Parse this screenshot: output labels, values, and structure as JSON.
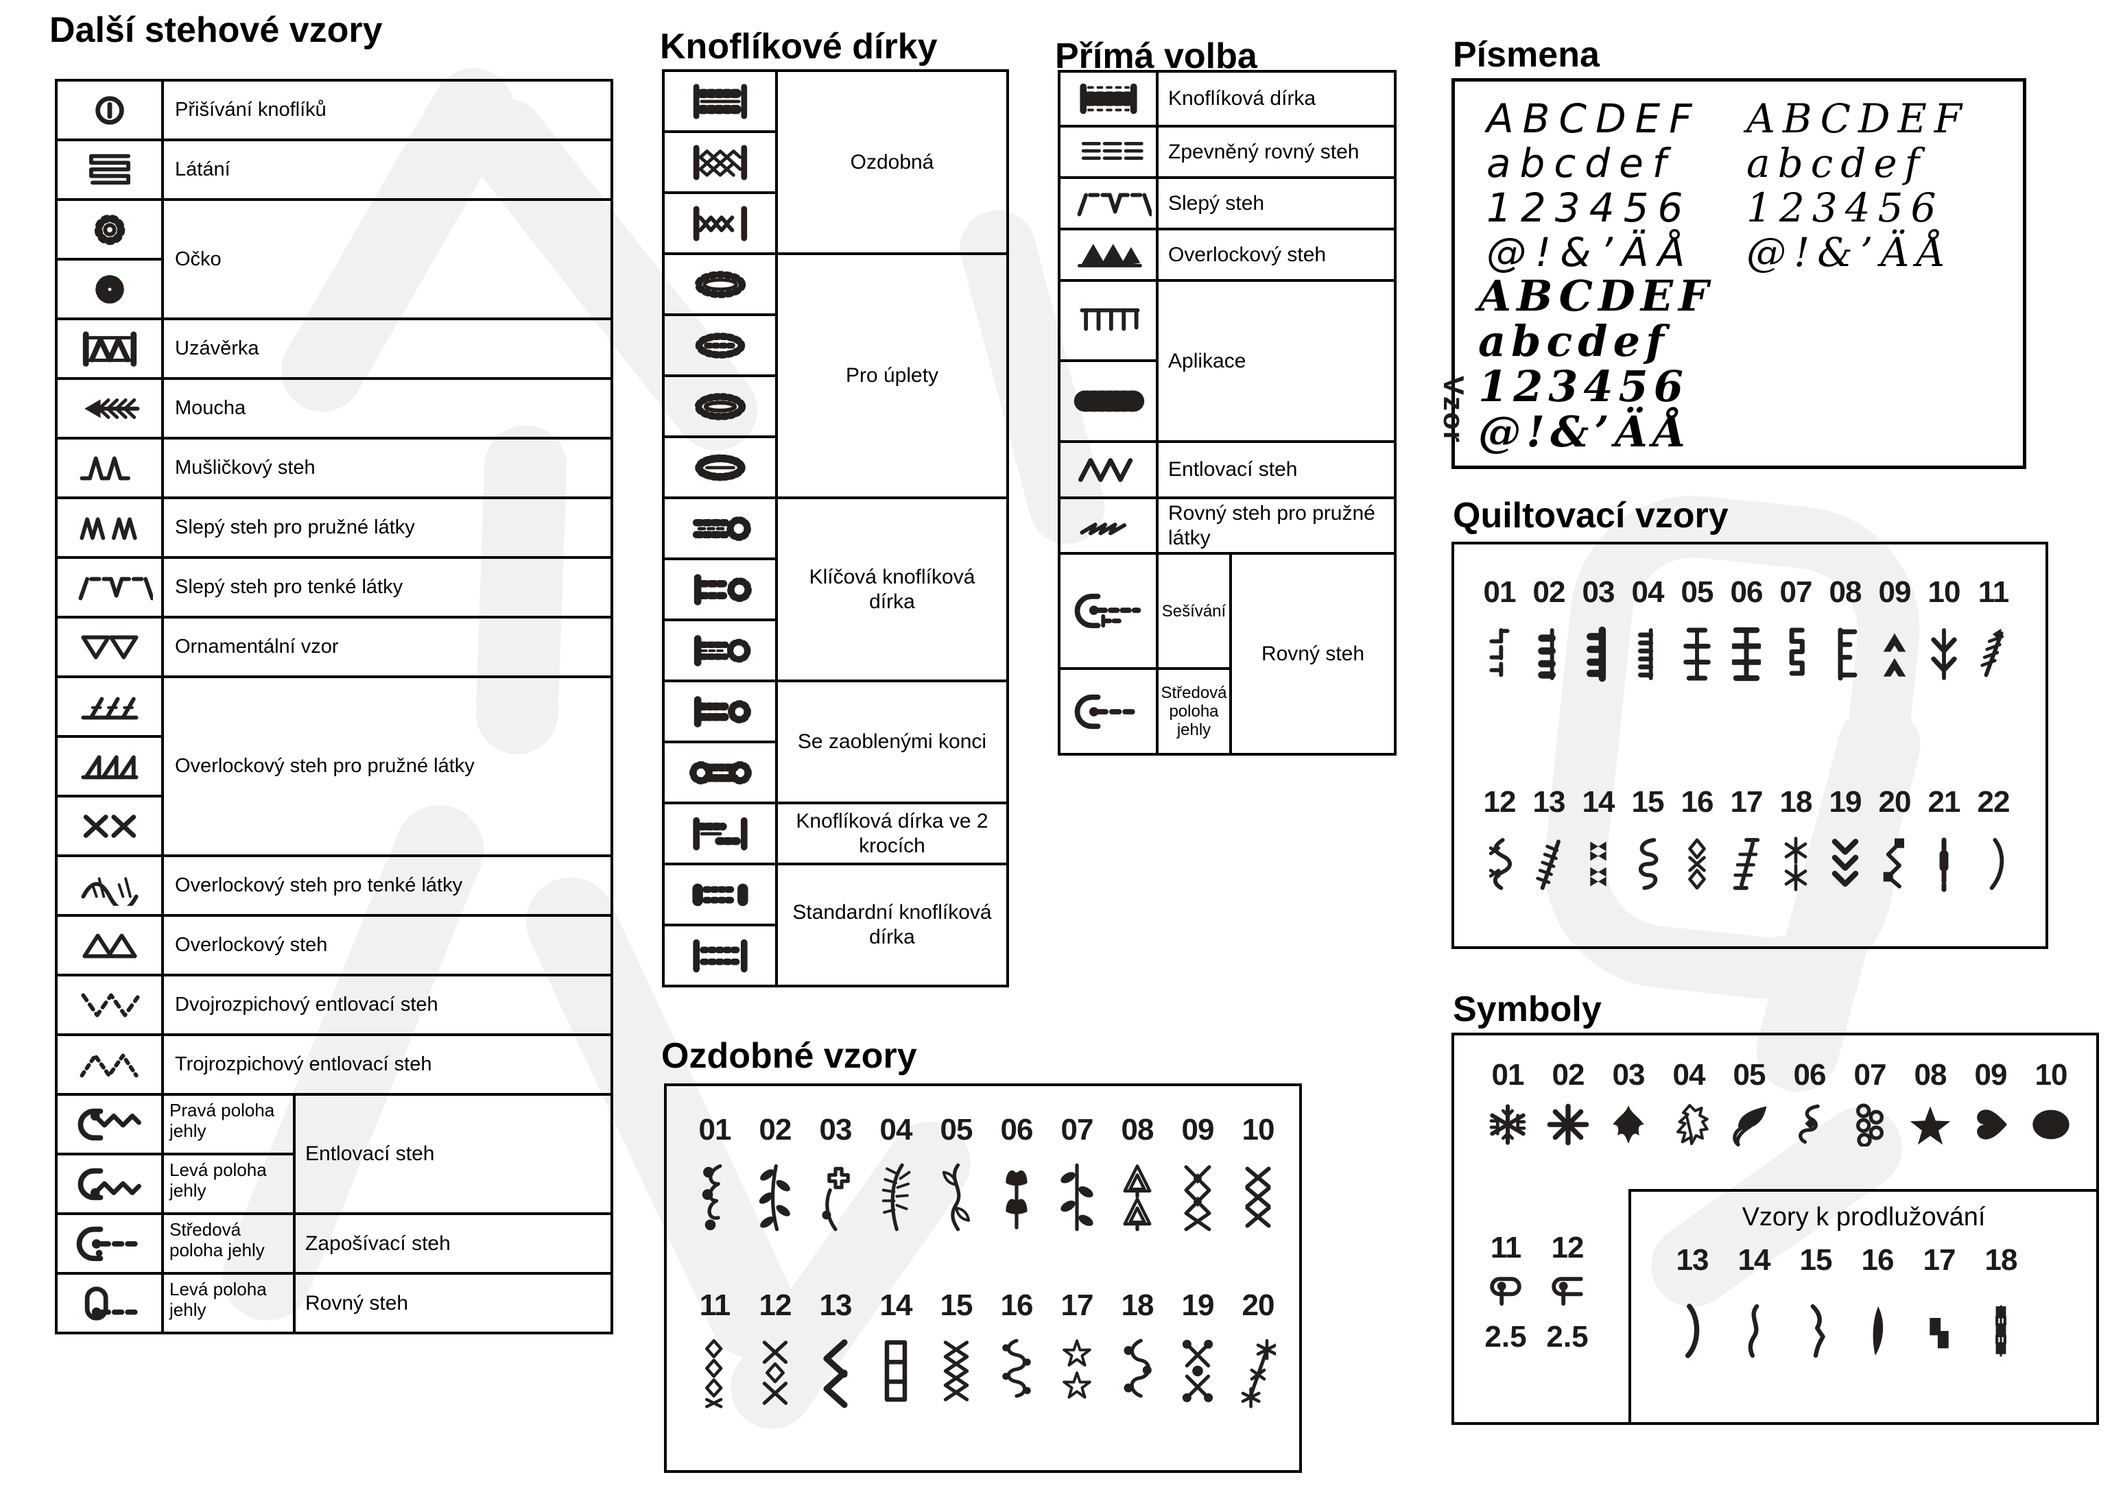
{
  "page": {
    "background": "#ffffff",
    "ink": "#231f1c",
    "watermark_color": "#f1f1f1"
  },
  "sections": {
    "dalsi": {
      "title": "Další stehové vzory",
      "rows": [
        {
          "icon": "button-sew",
          "label": "Přišívání knoflíků"
        },
        {
          "icon": "darning",
          "label": "Látání"
        },
        {
          "icon": "eyelet-thin",
          "label": "Očko"
        },
        {
          "icon": "eyelet-solid"
        },
        {
          "icon": "bartack",
          "label": "Uzávěrka"
        },
        {
          "icon": "fly-stitch",
          "label": "Moucha"
        },
        {
          "icon": "shell-stitch",
          "label": "Mušličkový steh"
        },
        {
          "icon": "blind-stretch",
          "label": "Slepý steh pro pružné látky"
        },
        {
          "icon": "blind-fine",
          "label": "Slepý steh pro tenké látky"
        },
        {
          "icon": "ornamental-pattern",
          "label": "Ornamentální vzor"
        },
        {
          "icon": "overlock-stretch-a",
          "label": "Overlockový steh pro pružné látky"
        },
        {
          "icon": "overlock-stretch-b"
        },
        {
          "icon": "overlock-stretch-c"
        },
        {
          "icon": "overlock-fine",
          "label": "Overlockový steh pro tenké látky"
        },
        {
          "icon": "overlock-plain",
          "label": "Overlockový steh"
        },
        {
          "icon": "zigzag-2step",
          "label": "Dvojrozpichový entlovací steh"
        },
        {
          "icon": "zigzag-3step",
          "label": "Trojrozpichový entlovací steh"
        },
        {
          "icon": "needle-right-zigzag",
          "sub": "Pravá poloha jehly",
          "label": "Entlovací steh"
        },
        {
          "icon": "needle-left-zigzag",
          "sub": "Levá poloha jehly"
        },
        {
          "icon": "needle-center-straight",
          "sub": "Středová poloha jehly",
          "label": "Zapošívací steh"
        },
        {
          "icon": "needle-left-straight",
          "sub": "Levá poloha jehly",
          "label": "Rovný steh"
        }
      ]
    },
    "knoflikove": {
      "title": "Knoflíkové dírky",
      "rows": [
        {
          "icon": "bh-ladder",
          "label": "Ozdobná"
        },
        {
          "icon": "bh-diamond"
        },
        {
          "icon": "bh-wave"
        },
        {
          "icon": "bh-knit-a",
          "label": "Pro úplety"
        },
        {
          "icon": "bh-knit-b"
        },
        {
          "icon": "bh-knit-c"
        },
        {
          "icon": "bh-knit-d"
        },
        {
          "icon": "bh-key-a",
          "label": "Klíčová knoflíková dírka"
        },
        {
          "icon": "bh-key-b"
        },
        {
          "icon": "bh-key-c"
        },
        {
          "icon": "bh-round-a",
          "label": "Se zaoblenými konci"
        },
        {
          "icon": "bh-round-b"
        },
        {
          "icon": "bh-2step",
          "label": "Knoflíková dírka ve 2 krocích"
        },
        {
          "icon": "bh-standard-a",
          "label": "Standardní knoflíková dírka"
        },
        {
          "icon": "bh-standard-b"
        }
      ]
    },
    "prima": {
      "title": "Přímá volba",
      "rows": [
        {
          "icon": "bh-direct",
          "label": "Knoflíková dírka"
        },
        {
          "icon": "reinforced-straight",
          "label": "Zpevněný rovný steh"
        },
        {
          "icon": "blind-fine",
          "label": "Slepý steh"
        },
        {
          "icon": "overlock-direct",
          "label": "Overlockový steh"
        },
        {
          "icon": "applique-edge",
          "label": "Aplikace"
        },
        {
          "icon": "applique-satin"
        },
        {
          "icon": "zigzag-plain",
          "label": "Entlovací steh"
        },
        {
          "icon": "stretch-straight",
          "label": "Rovný steh pro pružné látky"
        },
        {
          "icon": "needle-seam",
          "sub": "Sešívání",
          "label": "Rovný steh"
        },
        {
          "icon": "needle-center-plain",
          "sub": "Středová poloha jehly"
        }
      ]
    },
    "pismena": {
      "title": "Písmena",
      "font_a": [
        "ABCDEF",
        "abcdef",
        "123456",
        "@!&’ÄÅ"
      ],
      "font_b": [
        "ABCDEF",
        "abcdef",
        "123456",
        "@!&’ÄÅ"
      ],
      "font_c": [
        "ABCDEF",
        "abcdef",
        "123456",
        "@!&’ÄÅ"
      ],
      "stamp": "Vzor"
    },
    "quilt": {
      "title": "Quiltovací vzory",
      "row1": [
        {
          "num": "01",
          "icon": "quilt-01"
        },
        {
          "num": "02",
          "icon": "quilt-02"
        },
        {
          "num": "03",
          "icon": "quilt-03"
        },
        {
          "num": "04",
          "icon": "quilt-04"
        },
        {
          "num": "05",
          "icon": "quilt-05"
        },
        {
          "num": "06",
          "icon": "quilt-06"
        },
        {
          "num": "07",
          "icon": "quilt-07"
        },
        {
          "num": "08",
          "icon": "quilt-08"
        },
        {
          "num": "09",
          "icon": "quilt-09"
        },
        {
          "num": "10",
          "icon": "quilt-10"
        },
        {
          "num": "11",
          "icon": "quilt-11"
        }
      ],
      "row2": [
        {
          "num": "12",
          "icon": "quilt-12"
        },
        {
          "num": "13",
          "icon": "quilt-13"
        },
        {
          "num": "14",
          "icon": "quilt-14"
        },
        {
          "num": "15",
          "icon": "quilt-15"
        },
        {
          "num": "16",
          "icon": "quilt-16"
        },
        {
          "num": "17",
          "icon": "quilt-17"
        },
        {
          "num": "18",
          "icon": "quilt-18"
        },
        {
          "num": "19",
          "icon": "quilt-19"
        },
        {
          "num": "20",
          "icon": "quilt-20"
        },
        {
          "num": "21",
          "icon": "quilt-21"
        },
        {
          "num": "22",
          "icon": "quilt-22"
        }
      ]
    },
    "symboly": {
      "title": "Symboly",
      "row1": [
        {
          "num": "01",
          "icon": "symbol-01"
        },
        {
          "num": "02",
          "icon": "symbol-02"
        },
        {
          "num": "03",
          "icon": "symbol-03"
        },
        {
          "num": "04",
          "icon": "symbol-04"
        },
        {
          "num": "05",
          "icon": "symbol-05"
        },
        {
          "num": "06",
          "icon": "symbol-06"
        },
        {
          "num": "07",
          "icon": "symbol-07"
        },
        {
          "num": "08",
          "icon": "symbol-08"
        },
        {
          "num": "09",
          "icon": "symbol-09"
        },
        {
          "num": "10",
          "icon": "symbol-10"
        }
      ],
      "small": [
        {
          "num": "11",
          "icon": "symbol-11",
          "value": "2.5"
        },
        {
          "num": "12",
          "icon": "symbol-12",
          "value": "2.5"
        }
      ],
      "extension": {
        "label": "Vzory k prodlužování",
        "items": [
          {
            "num": "13",
            "icon": "ext-13"
          },
          {
            "num": "14",
            "icon": "ext-14"
          },
          {
            "num": "15",
            "icon": "ext-15"
          },
          {
            "num": "16",
            "icon": "ext-16"
          },
          {
            "num": "17",
            "icon": "ext-17"
          },
          {
            "num": "18",
            "icon": "ext-18"
          }
        ]
      }
    },
    "ozdobne": {
      "title": "Ozdobné vzory",
      "row1": [
        {
          "num": "01",
          "icon": "deco-01"
        },
        {
          "num": "02",
          "icon": "deco-02"
        },
        {
          "num": "03",
          "icon": "deco-03"
        },
        {
          "num": "04",
          "icon": "deco-04"
        },
        {
          "num": "05",
          "icon": "deco-05"
        },
        {
          "num": "06",
          "icon": "deco-06"
        },
        {
          "num": "07",
          "icon": "deco-07"
        },
        {
          "num": "08",
          "icon": "deco-08"
        },
        {
          "num": "09",
          "icon": "deco-09"
        },
        {
          "num": "10",
          "icon": "deco-10"
        }
      ],
      "row2": [
        {
          "num": "11",
          "icon": "deco-11"
        },
        {
          "num": "12",
          "icon": "deco-12"
        },
        {
          "num": "13",
          "icon": "deco-13"
        },
        {
          "num": "14",
          "icon": "deco-14"
        },
        {
          "num": "15",
          "icon": "deco-15"
        },
        {
          "num": "16",
          "icon": "deco-16"
        },
        {
          "num": "17",
          "icon": "deco-17"
        },
        {
          "num": "18",
          "icon": "deco-18"
        },
        {
          "num": "19",
          "icon": "deco-19"
        },
        {
          "num": "20",
          "icon": "deco-20"
        }
      ]
    }
  }
}
